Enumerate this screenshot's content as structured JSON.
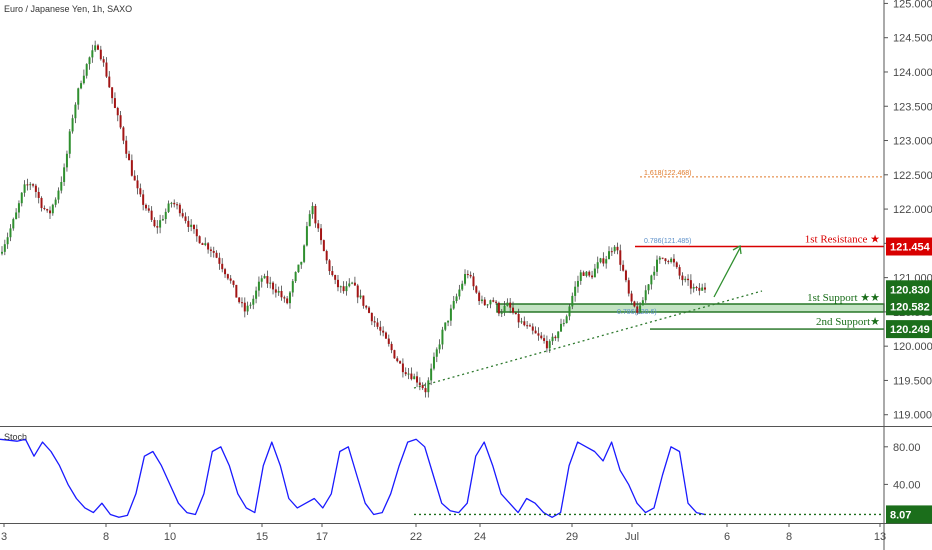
{
  "chart_data": {
    "type": "candlestick",
    "title": "Euro / Japanese Yen, 1h, SAXO",
    "y_axis": {
      "ticks": [
        "119.000",
        "119.500",
        "120.000",
        "120.500",
        "121.000",
        "121.500",
        "122.000",
        "122.500",
        "123.000",
        "123.500",
        "124.000",
        "124.500",
        "125.000"
      ],
      "range": [
        118.85,
        125.05
      ]
    },
    "x_axis": {
      "ticks": [
        "3",
        "8",
        "10",
        "15",
        "17",
        "22",
        "24",
        "29",
        "Jul",
        "6",
        "8",
        "13"
      ]
    },
    "price_path": [
      121.35,
      121.6,
      121.9,
      122.3,
      122.4,
      122.1,
      121.9,
      122.2,
      122.6,
      123.4,
      123.9,
      124.2,
      124.4,
      124.0,
      123.5,
      123.1,
      122.6,
      122.2,
      122.0,
      121.7,
      121.9,
      122.1,
      122.0,
      121.8,
      121.6,
      121.5,
      121.4,
      121.2,
      121.0,
      120.7,
      120.5,
      120.7,
      121.0,
      120.9,
      120.8,
      120.6,
      121.0,
      121.3,
      122.1,
      121.6,
      121.2,
      120.9,
      120.8,
      120.9,
      120.7,
      120.5,
      120.3,
      120.1,
      119.9,
      119.7,
      119.6,
      119.5,
      119.35,
      119.8,
      120.2,
      120.5,
      120.8,
      121.1,
      120.8,
      120.6,
      120.7,
      120.5,
      120.6,
      120.4,
      120.3,
      120.2,
      120.1,
      120.0,
      120.2,
      120.4,
      120.8,
      121.1,
      121.0,
      121.2,
      121.3,
      121.5,
      121.1,
      120.6,
      120.5,
      120.9,
      121.2,
      121.3,
      121.25,
      121.0,
      120.9,
      120.8,
      120.85
    ],
    "levels": [
      {
        "label": "1st Resistance ★",
        "value": "121.454",
        "color": "#d80000"
      },
      {
        "label": "1st Support ★★",
        "value": "120.582",
        "color": "#1b6e1b"
      },
      {
        "label": "2nd Support★",
        "value": "120.249",
        "color": "#1b6e1b"
      }
    ],
    "current_price": "120.830",
    "current_price_color": "#1b6e1b",
    "fib_extension": {
      "label": "1.618(122.468)",
      "color": "#e07a2b"
    },
    "fib_retracement_top": {
      "label": "0.786(121.485)",
      "color": "#5b8fc9"
    },
    "fib_retracement_bottom": {
      "label": "0.786(120.6)",
      "color": "#5b8fc9"
    },
    "stoch": {
      "title": "Stoch",
      "ticks": [
        "80.00",
        "40.00"
      ],
      "value": "8.07",
      "color": "#1a1aff",
      "path": [
        88,
        87,
        86,
        88,
        70,
        85,
        75,
        60,
        40,
        25,
        15,
        10,
        20,
        8,
        5,
        7,
        30,
        70,
        75,
        60,
        40,
        20,
        10,
        8,
        30,
        75,
        80,
        60,
        30,
        15,
        10,
        60,
        85,
        60,
        25,
        15,
        20,
        25,
        15,
        30,
        75,
        80,
        50,
        20,
        8,
        10,
        30,
        60,
        85,
        88,
        80,
        50,
        20,
        12,
        10,
        20,
        70,
        85,
        60,
        30,
        20,
        10,
        25,
        20,
        10,
        5,
        10,
        60,
        85,
        80,
        75,
        65,
        85,
        55,
        40,
        20,
        10,
        15,
        50,
        80,
        75,
        20,
        10,
        8
      ]
    }
  }
}
